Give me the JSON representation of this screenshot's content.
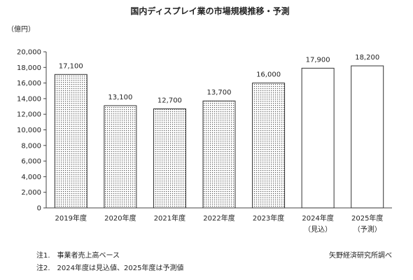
{
  "chart_data": {
    "type": "bar",
    "title": "国内ディスプレイ業の市場規模推移・予測",
    "ylabel": "（億円）",
    "xlabel": "",
    "ylim": [
      0,
      20000
    ],
    "yticks": [
      0,
      2000,
      4000,
      6000,
      8000,
      10000,
      12000,
      14000,
      16000,
      18000,
      20000
    ],
    "ytick_labels": [
      "0",
      "2,000",
      "4,000",
      "6,000",
      "8,000",
      "10,000",
      "12,000",
      "14,000",
      "16,000",
      "18,000",
      "20,000"
    ],
    "categories": [
      "2019年度",
      "2020年度",
      "2021年度",
      "2022年度",
      "2023年度",
      "2024年度",
      "2025年度"
    ],
    "category_sublabels": [
      "",
      "",
      "",
      "",
      "",
      "（見込）",
      "（予測）"
    ],
    "values": [
      17100,
      13100,
      12700,
      13700,
      16000,
      17900,
      18200
    ],
    "value_labels": [
      "17,100",
      "13,100",
      "12,700",
      "13,700",
      "16,000",
      "17,900",
      "18,200"
    ],
    "bar_fill": [
      "dotted",
      "dotted",
      "dotted",
      "dotted",
      "dotted",
      "white",
      "white"
    ],
    "grid": false,
    "legend": "none"
  },
  "notes": {
    "note1": "注1.　事業者売上高ベース",
    "note2": "注2.　2024年度は見込値、2025年度は予測値",
    "source": "矢野経済研究所調べ"
  }
}
